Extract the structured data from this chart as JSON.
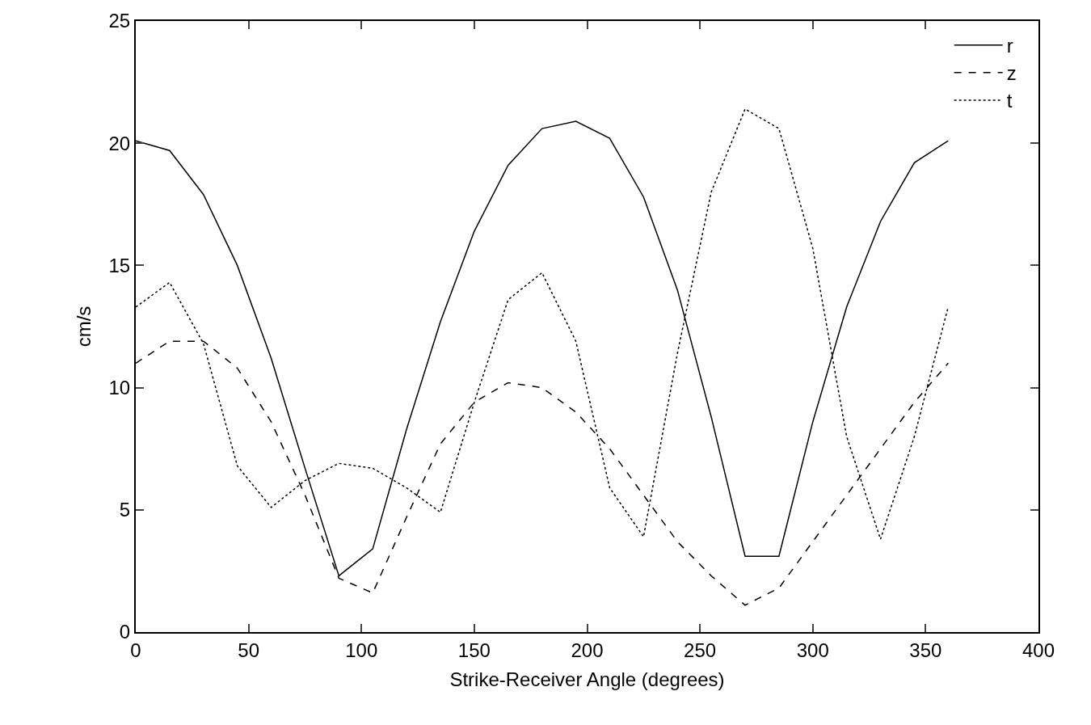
{
  "chart_data": {
    "type": "line",
    "xlabel": "Strike-Receiver Angle (degrees)",
    "ylabel": "cm/s",
    "x": [
      0,
      15,
      30,
      45,
      60,
      75,
      90,
      105,
      120,
      135,
      150,
      165,
      180,
      195,
      210,
      225,
      240,
      255,
      270,
      285,
      300,
      315,
      330,
      345,
      360
    ],
    "series": [
      {
        "name": "r",
        "color": "#000000",
        "line_style": "solid",
        "values": [
          20.1,
          19.7,
          17.9,
          15.0,
          11.2,
          6.7,
          2.3,
          3.4,
          8.3,
          12.7,
          16.4,
          19.1,
          20.6,
          20.9,
          20.2,
          17.8,
          14.0,
          8.8,
          3.1,
          3.1,
          8.6,
          13.3,
          16.8,
          19.2,
          20.1
        ]
      },
      {
        "name": "z",
        "color": "#000000",
        "line_style": "dashed",
        "values": [
          11.0,
          11.9,
          11.9,
          10.8,
          8.6,
          5.6,
          2.2,
          1.6,
          4.7,
          7.7,
          9.4,
          10.2,
          10.0,
          9.0,
          7.5,
          5.6,
          3.7,
          2.3,
          1.1,
          1.8,
          3.7,
          5.6,
          7.5,
          9.4,
          11.0
        ]
      },
      {
        "name": "t",
        "color": "#000000",
        "line_style": "dotted",
        "values": [
          13.3,
          14.3,
          11.8,
          6.8,
          5.1,
          6.2,
          6.9,
          6.7,
          5.9,
          4.9,
          9.4,
          13.6,
          14.7,
          11.9,
          5.9,
          3.9,
          11.4,
          18.0,
          21.4,
          20.6,
          15.7,
          8.0,
          3.8,
          8.0,
          13.3
        ]
      }
    ],
    "xlim": [
      0,
      400
    ],
    "xticks": [
      0,
      50,
      100,
      150,
      200,
      250,
      300,
      350,
      400
    ],
    "ylim": [
      0,
      25
    ],
    "yticks": [
      0,
      5,
      10,
      15,
      20,
      25
    ],
    "legend": "top right",
    "marker": "none"
  }
}
